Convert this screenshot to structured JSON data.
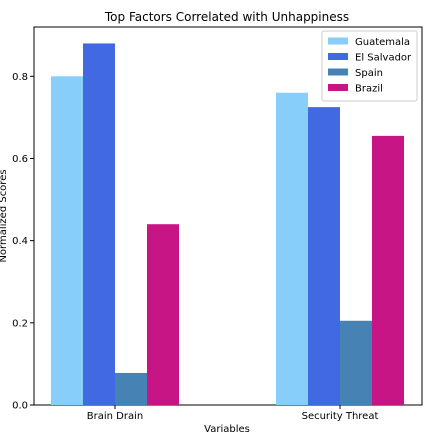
{
  "chart_data": {
    "type": "bar",
    "title": "Top Factors Correlated with Unhappiness",
    "xlabel": "Variables",
    "ylabel": "Normalized Scores",
    "categories": [
      "Brain Drain",
      "Security Threat"
    ],
    "series": [
      {
        "name": "Guatemala",
        "values": [
          0.8,
          0.76
        ],
        "color": "#87CEFA"
      },
      {
        "name": "El Salvador",
        "values": [
          0.88,
          0.725
        ],
        "color": "#4169E1"
      },
      {
        "name": "Spain",
        "values": [
          0.078,
          0.205
        ],
        "color": "#4682B4"
      },
      {
        "name": "Brazil",
        "values": [
          0.44,
          0.655
        ],
        "color": "#C71585"
      }
    ],
    "ylim": [
      0,
      0.92
    ],
    "yticks": [
      "0.0",
      "0.2",
      "0.4",
      "0.6",
      "0.8"
    ],
    "legend_position": "top-right",
    "grid": false
  }
}
